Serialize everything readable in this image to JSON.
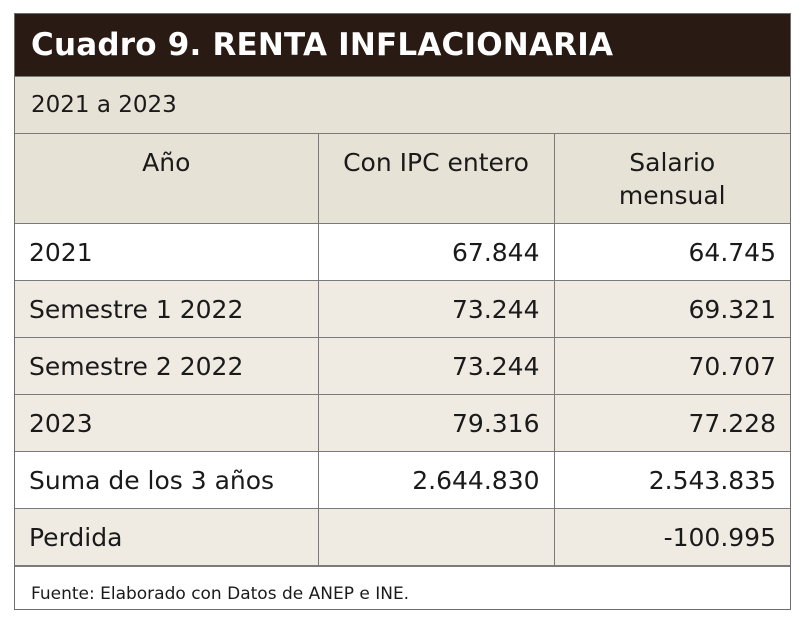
{
  "title": "Cuadro 9. RENTA INFLACIONARIA",
  "subtitle": "2021 a 2023",
  "columns": [
    "Año",
    "Con IPC entero",
    "Salario mensual"
  ],
  "rows": [
    {
      "label": "2021",
      "ipc": "67.844",
      "salario": "64.745"
    },
    {
      "label": "Semestre 1 2022",
      "ipc": "73.244",
      "salario": "69.321"
    },
    {
      "label": "Semestre 2 2022",
      "ipc": "73.244",
      "salario": "70.707"
    },
    {
      "label": "2023",
      "ipc": "79.316",
      "salario": "77.228"
    },
    {
      "label": "Suma de los 3 años",
      "ipc": "2.644.830",
      "salario": "2.543.835"
    },
    {
      "label": "Perdida",
      "ipc": "",
      "salario": "-100.995"
    }
  ],
  "source": "Fuente: Elaborado con Datos de ANEP e INE.",
  "colors": {
    "title_bg": "#2a1a14",
    "header_bg": "#e7e2d6",
    "row_shade": "#efebe3"
  }
}
